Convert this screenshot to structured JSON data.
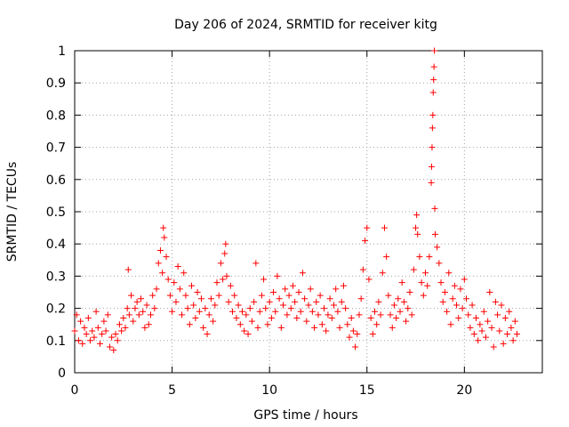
{
  "chart_data": {
    "type": "scatter",
    "title": "Day 206 of 2024, SRMTID for receiver kitg",
    "xlabel": "GPS time / hours",
    "ylabel": "SRMTID / TECUs",
    "xlim": [
      0,
      24
    ],
    "ylim": [
      0,
      1
    ],
    "xticks": [
      0,
      5,
      10,
      15,
      20
    ],
    "xtick_labels": [
      "0",
      "5",
      "10",
      "15",
      "20"
    ],
    "yticks": [
      0,
      0.1,
      0.2,
      0.3,
      0.4,
      0.5,
      0.6,
      0.7,
      0.8,
      0.9,
      1
    ],
    "ytick_labels": [
      "0",
      "0.1",
      "0.2",
      "0.3",
      "0.4",
      "0.5",
      "0.6",
      "0.7",
      "0.8",
      "0.9",
      "1"
    ],
    "grid": true,
    "marker": "+",
    "color": "#ff0000",
    "series": [
      {
        "name": "SRMTID",
        "points": [
          [
            0.0,
            0.13
          ],
          [
            0.1,
            0.18
          ],
          [
            0.2,
            0.1
          ],
          [
            0.3,
            0.16
          ],
          [
            0.4,
            0.09
          ],
          [
            0.5,
            0.14
          ],
          [
            0.6,
            0.12
          ],
          [
            0.7,
            0.17
          ],
          [
            0.8,
            0.1
          ],
          [
            0.9,
            0.13
          ],
          [
            1.0,
            0.11
          ],
          [
            1.1,
            0.19
          ],
          [
            1.2,
            0.14
          ],
          [
            1.3,
            0.09
          ],
          [
            1.4,
            0.12
          ],
          [
            1.5,
            0.16
          ],
          [
            1.6,
            0.13
          ],
          [
            1.7,
            0.18
          ],
          [
            1.8,
            0.08
          ],
          [
            1.9,
            0.11
          ],
          [
            2.0,
            0.07
          ],
          [
            2.1,
            0.12
          ],
          [
            2.2,
            0.1
          ],
          [
            2.3,
            0.15
          ],
          [
            2.4,
            0.13
          ],
          [
            2.5,
            0.17
          ],
          [
            2.6,
            0.14
          ],
          [
            2.7,
            0.2
          ],
          [
            2.75,
            0.32
          ],
          [
            2.8,
            0.18
          ],
          [
            2.9,
            0.24
          ],
          [
            3.0,
            0.16
          ],
          [
            3.1,
            0.2
          ],
          [
            3.2,
            0.22
          ],
          [
            3.3,
            0.18
          ],
          [
            3.4,
            0.23
          ],
          [
            3.5,
            0.19
          ],
          [
            3.6,
            0.14
          ],
          [
            3.7,
            0.21
          ],
          [
            3.8,
            0.15
          ],
          [
            3.9,
            0.18
          ],
          [
            4.0,
            0.24
          ],
          [
            4.1,
            0.2
          ],
          [
            4.2,
            0.26
          ],
          [
            4.3,
            0.34
          ],
          [
            4.4,
            0.38
          ],
          [
            4.5,
            0.31
          ],
          [
            4.55,
            0.45
          ],
          [
            4.6,
            0.42
          ],
          [
            4.7,
            0.36
          ],
          [
            4.8,
            0.29
          ],
          [
            4.9,
            0.24
          ],
          [
            5.0,
            0.19
          ],
          [
            5.1,
            0.28
          ],
          [
            5.2,
            0.22
          ],
          [
            5.3,
            0.33
          ],
          [
            5.4,
            0.26
          ],
          [
            5.5,
            0.18
          ],
          [
            5.6,
            0.31
          ],
          [
            5.7,
            0.24
          ],
          [
            5.8,
            0.2
          ],
          [
            5.9,
            0.15
          ],
          [
            6.0,
            0.27
          ],
          [
            6.1,
            0.21
          ],
          [
            6.2,
            0.17
          ],
          [
            6.3,
            0.25
          ],
          [
            6.4,
            0.19
          ],
          [
            6.5,
            0.23
          ],
          [
            6.6,
            0.14
          ],
          [
            6.7,
            0.2
          ],
          [
            6.8,
            0.12
          ],
          [
            6.9,
            0.18
          ],
          [
            7.0,
            0.23
          ],
          [
            7.1,
            0.16
          ],
          [
            7.2,
            0.21
          ],
          [
            7.3,
            0.28
          ],
          [
            7.4,
            0.24
          ],
          [
            7.5,
            0.34
          ],
          [
            7.6,
            0.29
          ],
          [
            7.7,
            0.37
          ],
          [
            7.75,
            0.4
          ],
          [
            7.8,
            0.3
          ],
          [
            7.9,
            0.22
          ],
          [
            8.0,
            0.27
          ],
          [
            8.1,
            0.19
          ],
          [
            8.2,
            0.24
          ],
          [
            8.3,
            0.17
          ],
          [
            8.4,
            0.21
          ],
          [
            8.5,
            0.15
          ],
          [
            8.6,
            0.19
          ],
          [
            8.7,
            0.13
          ],
          [
            8.8,
            0.18
          ],
          [
            8.9,
            0.12
          ],
          [
            9.0,
            0.2
          ],
          [
            9.1,
            0.16
          ],
          [
            9.2,
            0.22
          ],
          [
            9.3,
            0.34
          ],
          [
            9.4,
            0.14
          ],
          [
            9.5,
            0.19
          ],
          [
            9.6,
            0.24
          ],
          [
            9.7,
            0.29
          ],
          [
            9.8,
            0.2
          ],
          [
            9.9,
            0.15
          ],
          [
            10.0,
            0.22
          ],
          [
            10.1,
            0.17
          ],
          [
            10.2,
            0.25
          ],
          [
            10.3,
            0.19
          ],
          [
            10.4,
            0.3
          ],
          [
            10.5,
            0.23
          ],
          [
            10.6,
            0.14
          ],
          [
            10.7,
            0.21
          ],
          [
            10.8,
            0.26
          ],
          [
            10.9,
            0.18
          ],
          [
            11.0,
            0.24
          ],
          [
            11.1,
            0.2
          ],
          [
            11.2,
            0.27
          ],
          [
            11.3,
            0.22
          ],
          [
            11.4,
            0.17
          ],
          [
            11.5,
            0.25
          ],
          [
            11.6,
            0.19
          ],
          [
            11.7,
            0.31
          ],
          [
            11.8,
            0.23
          ],
          [
            11.9,
            0.16
          ],
          [
            12.0,
            0.21
          ],
          [
            12.1,
            0.26
          ],
          [
            12.2,
            0.19
          ],
          [
            12.3,
            0.14
          ],
          [
            12.4,
            0.22
          ],
          [
            12.5,
            0.18
          ],
          [
            12.6,
            0.24
          ],
          [
            12.7,
            0.15
          ],
          [
            12.8,
            0.2
          ],
          [
            12.9,
            0.13
          ],
          [
            13.0,
            0.18
          ],
          [
            13.1,
            0.23
          ],
          [
            13.2,
            0.17
          ],
          [
            13.3,
            0.21
          ],
          [
            13.4,
            0.26
          ],
          [
            13.5,
            0.19
          ],
          [
            13.6,
            0.14
          ],
          [
            13.7,
            0.22
          ],
          [
            13.8,
            0.27
          ],
          [
            13.9,
            0.2
          ],
          [
            14.0,
            0.15
          ],
          [
            14.1,
            0.11
          ],
          [
            14.2,
            0.17
          ],
          [
            14.3,
            0.13
          ],
          [
            14.4,
            0.08
          ],
          [
            14.5,
            0.12
          ],
          [
            14.6,
            0.18
          ],
          [
            14.7,
            0.23
          ],
          [
            14.8,
            0.32
          ],
          [
            14.9,
            0.41
          ],
          [
            15.0,
            0.45
          ],
          [
            15.1,
            0.29
          ],
          [
            15.2,
            0.17
          ],
          [
            15.3,
            0.12
          ],
          [
            15.4,
            0.19
          ],
          [
            15.5,
            0.15
          ],
          [
            15.6,
            0.22
          ],
          [
            15.7,
            0.18
          ],
          [
            15.8,
            0.31
          ],
          [
            15.9,
            0.45
          ],
          [
            16.0,
            0.36
          ],
          [
            16.1,
            0.24
          ],
          [
            16.2,
            0.18
          ],
          [
            16.3,
            0.14
          ],
          [
            16.4,
            0.21
          ],
          [
            16.5,
            0.17
          ],
          [
            16.6,
            0.23
          ],
          [
            16.7,
            0.19
          ],
          [
            16.8,
            0.28
          ],
          [
            16.9,
            0.22
          ],
          [
            17.0,
            0.16
          ],
          [
            17.1,
            0.2
          ],
          [
            17.2,
            0.25
          ],
          [
            17.3,
            0.18
          ],
          [
            17.4,
            0.32
          ],
          [
            17.5,
            0.45
          ],
          [
            17.55,
            0.49
          ],
          [
            17.6,
            0.43
          ],
          [
            17.7,
            0.36
          ],
          [
            17.8,
            0.28
          ],
          [
            17.9,
            0.24
          ],
          [
            18.0,
            0.31
          ],
          [
            18.1,
            0.27
          ],
          [
            18.2,
            0.36
          ],
          [
            18.3,
            0.59
          ],
          [
            18.32,
            0.64
          ],
          [
            18.34,
            0.7
          ],
          [
            18.36,
            0.76
          ],
          [
            18.38,
            0.8
          ],
          [
            18.4,
            0.87
          ],
          [
            18.42,
            0.91
          ],
          [
            18.44,
            0.95
          ],
          [
            18.46,
            1.0
          ],
          [
            18.48,
            0.51
          ],
          [
            18.5,
            0.43
          ],
          [
            18.6,
            0.39
          ],
          [
            18.7,
            0.34
          ],
          [
            18.8,
            0.28
          ],
          [
            18.9,
            0.22
          ],
          [
            19.0,
            0.25
          ],
          [
            19.1,
            0.19
          ],
          [
            19.2,
            0.31
          ],
          [
            19.3,
            0.15
          ],
          [
            19.4,
            0.23
          ],
          [
            19.5,
            0.27
          ],
          [
            19.6,
            0.21
          ],
          [
            19.7,
            0.17
          ],
          [
            19.8,
            0.26
          ],
          [
            19.9,
            0.2
          ],
          [
            20.0,
            0.29
          ],
          [
            20.1,
            0.23
          ],
          [
            20.2,
            0.18
          ],
          [
            20.3,
            0.14
          ],
          [
            20.4,
            0.21
          ],
          [
            20.5,
            0.12
          ],
          [
            20.6,
            0.17
          ],
          [
            20.7,
            0.1
          ],
          [
            20.8,
            0.15
          ],
          [
            20.9,
            0.13
          ],
          [
            21.0,
            0.19
          ],
          [
            21.1,
            0.11
          ],
          [
            21.2,
            0.16
          ],
          [
            21.3,
            0.25
          ],
          [
            21.4,
            0.14
          ],
          [
            21.5,
            0.08
          ],
          [
            21.6,
            0.22
          ],
          [
            21.7,
            0.18
          ],
          [
            21.8,
            0.13
          ],
          [
            21.9,
            0.21
          ],
          [
            22.0,
            0.09
          ],
          [
            22.1,
            0.17
          ],
          [
            22.2,
            0.12
          ],
          [
            22.3,
            0.19
          ],
          [
            22.4,
            0.14
          ],
          [
            22.5,
            0.1
          ],
          [
            22.6,
            0.16
          ],
          [
            22.7,
            0.12
          ]
        ]
      }
    ]
  }
}
